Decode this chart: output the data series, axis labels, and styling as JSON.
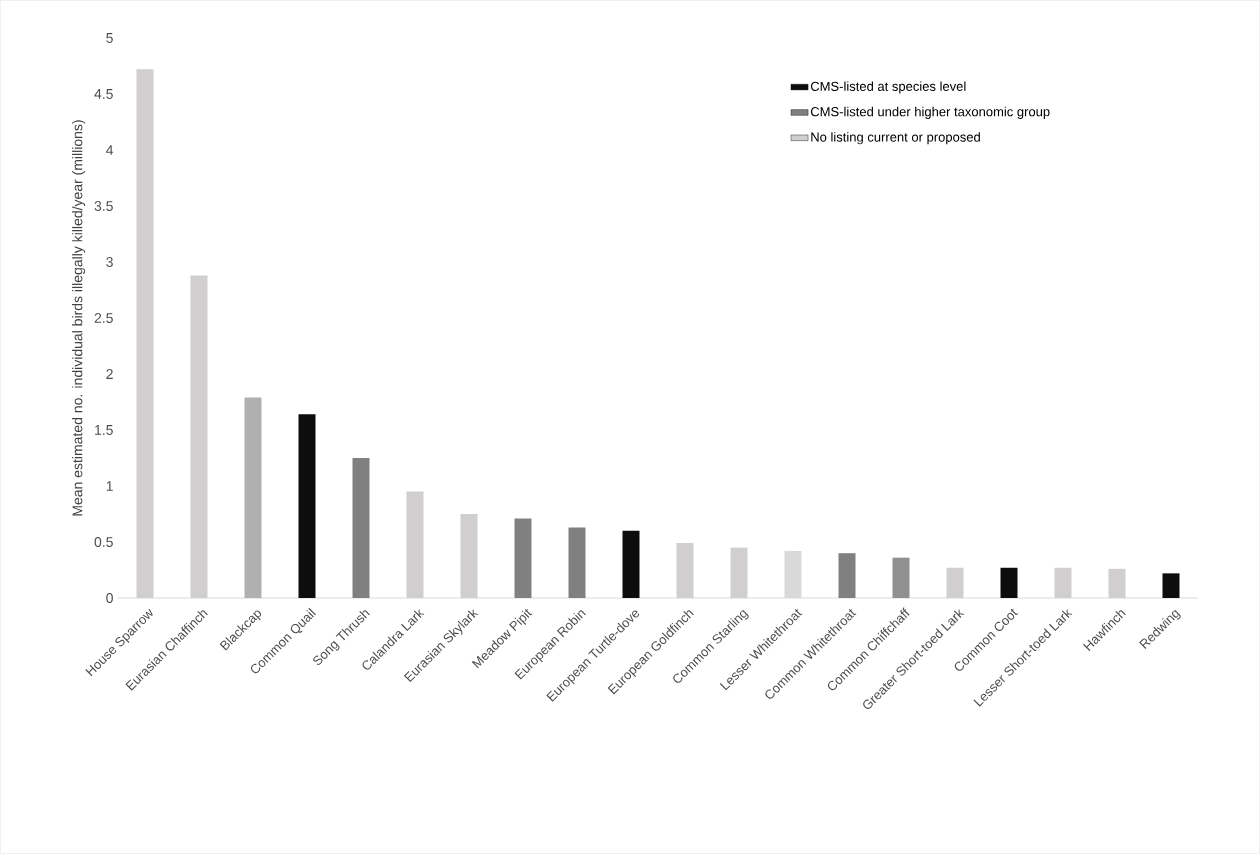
{
  "chart_data": {
    "type": "bar",
    "ylabel": "Mean estimated no. individual birds illegally killed/year (millions)",
    "categories": [
      "House Sparrow",
      "Eurasian Chaffinch",
      "Blackcap",
      "Common Quail",
      "Song Thrush",
      "Calandra Lark",
      "Eurasian Skylark",
      "Meadow Pipit",
      "European Robin",
      "European Turtle-dove",
      "European Goldfinch",
      "Common Starling",
      "Lesser Whitethroat",
      "Common Whitethroat",
      "Common Chiffchaff",
      "Greater Short-toed Lark",
      "Common Coot",
      "Lesser Short-toed Lark",
      "Hawfinch",
      "Redwing"
    ],
    "series": [
      {
        "name": "CMS-listed at species level",
        "color": "#0d0d0d",
        "values": [
          null,
          null,
          null,
          1.64,
          null,
          null,
          null,
          null,
          null,
          0.6,
          null,
          null,
          null,
          null,
          null,
          null,
          0.27,
          null,
          null,
          0.22
        ]
      },
      {
        "name": "CMS-listed under higher taxonomic group",
        "color": "#808080",
        "colors": [
          null,
          null,
          "#b0b0b0",
          null,
          "#808080",
          null,
          null,
          "#808080",
          "#808080",
          null,
          null,
          null,
          null,
          "#808080",
          "#909090",
          null,
          null,
          null,
          null,
          null
        ],
        "values": [
          null,
          null,
          1.79,
          null,
          1.25,
          null,
          null,
          0.71,
          0.63,
          null,
          null,
          null,
          null,
          0.4,
          0.36,
          null,
          null,
          null,
          null,
          null
        ]
      },
      {
        "name": "No listing current or proposed",
        "color": "#d0cece",
        "colors": [
          "#d0cece",
          "#d0cece",
          null,
          null,
          null,
          "#d0cece",
          "#d0cece",
          null,
          null,
          null,
          "#d0cece",
          "#d0cece",
          "#d9d9d9",
          null,
          null,
          "#d0cece",
          null,
          "#d0cece",
          "#d0cece",
          null
        ],
        "values": [
          4.72,
          2.88,
          null,
          null,
          null,
          0.95,
          0.75,
          null,
          null,
          null,
          0.49,
          0.45,
          0.42,
          null,
          null,
          0.27,
          null,
          0.27,
          0.26,
          null
        ]
      }
    ],
    "ylim": [
      0,
      5
    ],
    "yticks": [
      0,
      0.5,
      1,
      1.5,
      2,
      2.5,
      3,
      3.5,
      4,
      4.5,
      5
    ],
    "legend": "top right",
    "grid": false
  }
}
